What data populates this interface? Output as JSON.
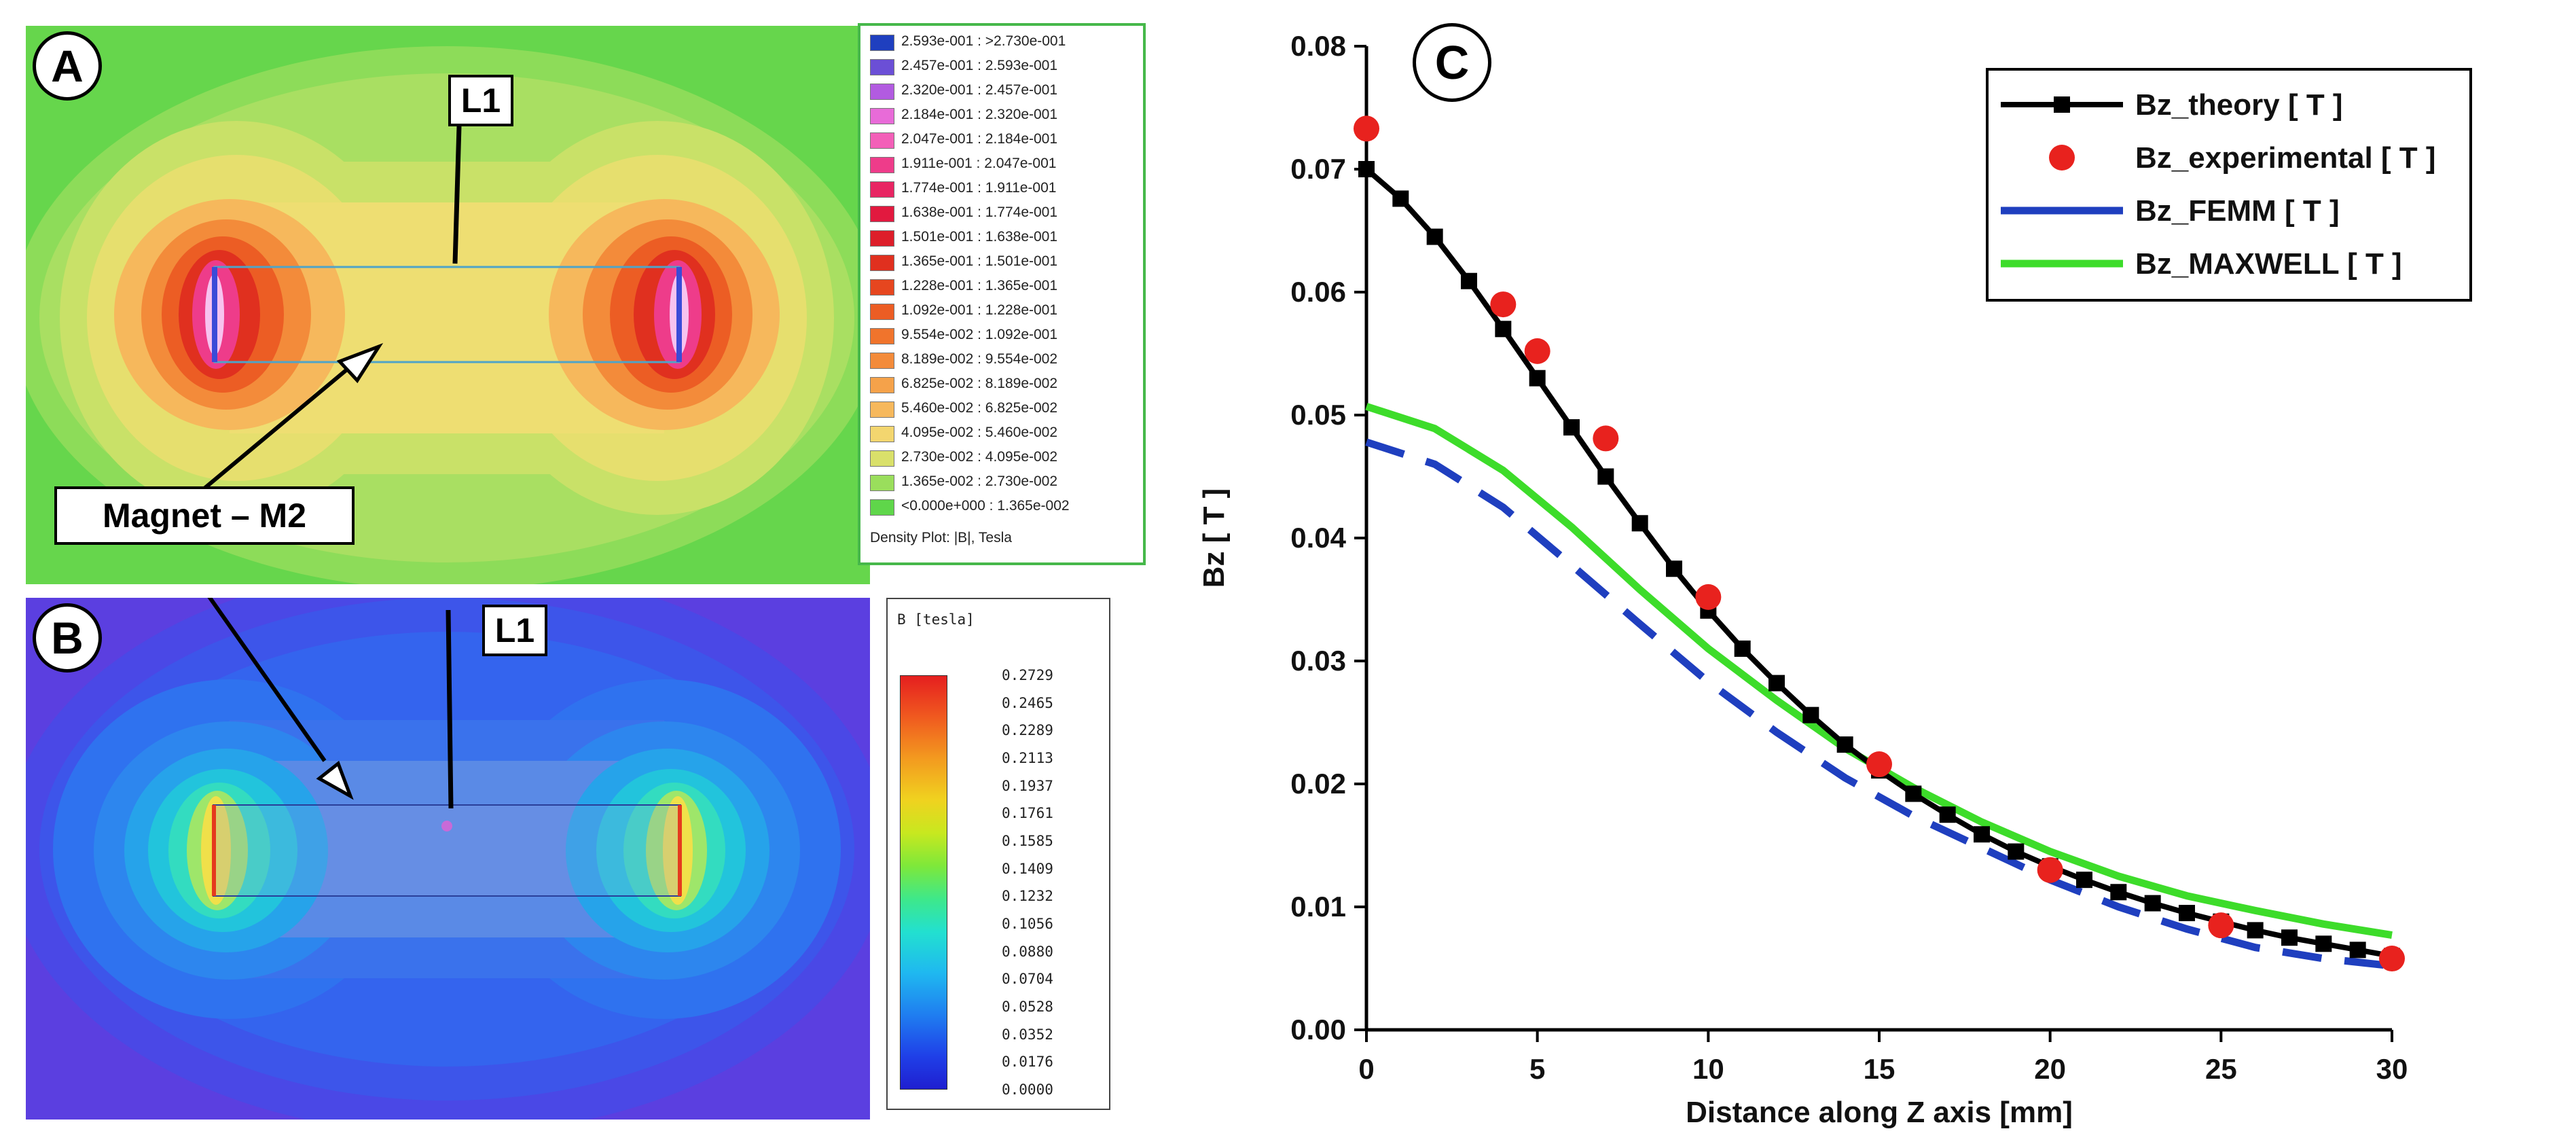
{
  "panel_a": {
    "label": "A",
    "line_label": "L1",
    "magnet_label": "Magnet – M2",
    "legend": {
      "caption": "Density Plot: |B|, Tesla",
      "entries": [
        {
          "range": "2.593e-001 : >2.730e-001",
          "color": "#1f3fbf"
        },
        {
          "range": "2.457e-001 : 2.593e-001",
          "color": "#6b4fd6"
        },
        {
          "range": "2.320e-001 : 2.457e-001",
          "color": "#b25be0"
        },
        {
          "range": "2.184e-001 : 2.320e-001",
          "color": "#e86bd8"
        },
        {
          "range": "2.047e-001 : 2.184e-001",
          "color": "#f35fb8"
        },
        {
          "range": "1.911e-001 : 2.047e-001",
          "color": "#ee3c8a"
        },
        {
          "range": "1.774e-001 : 1.911e-001",
          "color": "#e82563"
        },
        {
          "range": "1.638e-001 : 1.774e-001",
          "color": "#e2193f"
        },
        {
          "range": "1.501e-001 : 1.638e-001",
          "color": "#dd1e2a"
        },
        {
          "range": "1.365e-001 : 1.501e-001",
          "color": "#e0301f"
        },
        {
          "range": "1.228e-001 : 1.365e-001",
          "color": "#e6461f"
        },
        {
          "range": "1.092e-001 : 1.228e-001",
          "color": "#ec5d24"
        },
        {
          "range": "9.554e-002 : 1.092e-001",
          "color": "#f0742c"
        },
        {
          "range": "8.189e-002 : 9.554e-002",
          "color": "#f38b3a"
        },
        {
          "range": "6.825e-002 : 8.189e-002",
          "color": "#f5a24a"
        },
        {
          "range": "5.460e-002 : 6.825e-002",
          "color": "#f6b85c"
        },
        {
          "range": "4.095e-002 : 5.460e-002",
          "color": "#f3d66f"
        },
        {
          "range": "2.730e-002 : 4.095e-002",
          "color": "#d9e06a"
        },
        {
          "range": "1.365e-002 : 2.730e-002",
          "color": "#9ade5c"
        },
        {
          "range": "<0.000e+000 : 1.365e-002",
          "color": "#5fd64a"
        }
      ]
    }
  },
  "panel_b": {
    "label": "B",
    "line_label": "L1",
    "legend": {
      "title": "B [tesla]",
      "ticks": [
        "0.2729",
        "0.2465",
        "0.2289",
        "0.2113",
        "0.1937",
        "0.1761",
        "0.1585",
        "0.1409",
        "0.1232",
        "0.1056",
        "0.0880",
        "0.0704",
        "0.0528",
        "0.0352",
        "0.0176",
        "0.0000"
      ]
    }
  },
  "panel_c": {
    "label": "C"
  },
  "chart_data": {
    "type": "line",
    "xlabel": "Distance along Z axis [mm]",
    "ylabel": "Bz [ T ]",
    "xlim": [
      0,
      30
    ],
    "ylim": [
      0,
      0.08
    ],
    "xticks": [
      0,
      5,
      10,
      15,
      20,
      25,
      30
    ],
    "yticks": [
      0.0,
      0.01,
      0.02,
      0.03,
      0.04,
      0.05,
      0.06,
      0.07,
      0.08
    ],
    "legend_position": "top-right",
    "series": [
      {
        "name": "Bz_theory [ T ]",
        "style": "line-square",
        "color": "#000000",
        "x": [
          0,
          1,
          2,
          3,
          4,
          5,
          6,
          7,
          8,
          9,
          10,
          11,
          12,
          13,
          14,
          15,
          16,
          17,
          18,
          19,
          20,
          21,
          22,
          23,
          24,
          25,
          26,
          27,
          28,
          29,
          30
        ],
        "y": [
          0.07,
          0.0676,
          0.0645,
          0.0609,
          0.057,
          0.053,
          0.049,
          0.045,
          0.0412,
          0.0375,
          0.0341,
          0.031,
          0.0282,
          0.0256,
          0.0232,
          0.0211,
          0.0192,
          0.0175,
          0.0159,
          0.0145,
          0.0133,
          0.0122,
          0.0112,
          0.0103,
          0.0095,
          0.0088,
          0.0081,
          0.0075,
          0.007,
          0.0065,
          0.006
        ]
      },
      {
        "name": "Bz_experimental [ T ]",
        "style": "dots",
        "color": "#e8221e",
        "x": [
          0,
          4,
          5,
          7,
          10,
          15,
          20,
          25,
          30
        ],
        "y": [
          0.0733,
          0.059,
          0.0552,
          0.0481,
          0.0352,
          0.0216,
          0.013,
          0.0085,
          0.0058
        ]
      },
      {
        "name": "Bz_FEMM [ T ]",
        "style": "dashed",
        "color": "#1f3fbf",
        "x": [
          0,
          2,
          4,
          6,
          8,
          10,
          12,
          14,
          16,
          18,
          20,
          22,
          24,
          26,
          28,
          30
        ],
        "y": [
          0.0478,
          0.046,
          0.0425,
          0.0378,
          0.033,
          0.0283,
          0.0242,
          0.0205,
          0.0174,
          0.0148,
          0.0122,
          0.01,
          0.0082,
          0.0067,
          0.0058,
          0.0052
        ]
      },
      {
        "name": "Bz_MAXWELL [ T ]",
        "style": "solid",
        "color": "#3ddc2a",
        "x": [
          0,
          2,
          4,
          6,
          8,
          10,
          12,
          14,
          16,
          18,
          20,
          22,
          24,
          26,
          28,
          30
        ],
        "y": [
          0.0507,
          0.0489,
          0.0455,
          0.0409,
          0.0358,
          0.031,
          0.0268,
          0.0229,
          0.0197,
          0.0169,
          0.0145,
          0.0125,
          0.0109,
          0.0097,
          0.0086,
          0.0077
        ]
      }
    ]
  }
}
